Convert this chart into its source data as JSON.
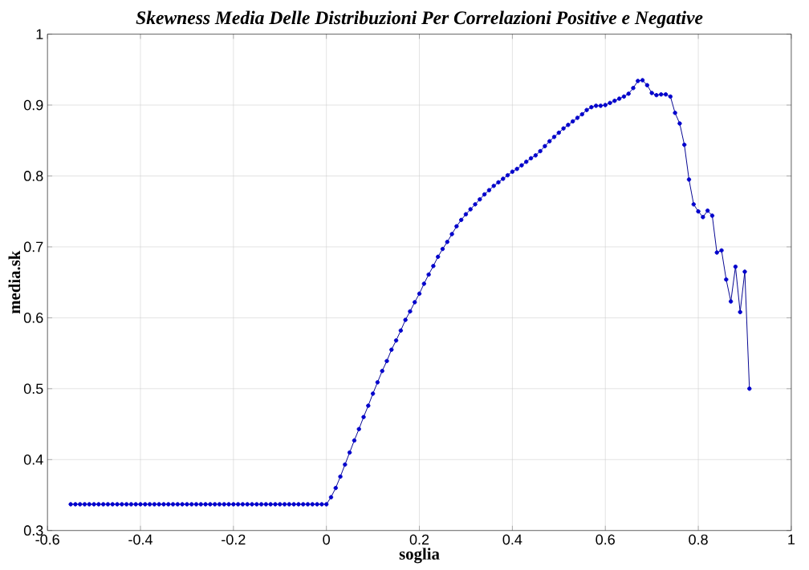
{
  "chart_data": {
    "type": "line",
    "title": "Skewness Media Delle Distribuzioni Per Correlazioni Positive e Negative",
    "xlabel": "soglia",
    "ylabel": "media.sk",
    "x": [
      -0.55,
      -0.54,
      -0.53,
      -0.52,
      -0.51,
      -0.5,
      -0.49,
      -0.48,
      -0.47,
      -0.46,
      -0.45,
      -0.44,
      -0.43,
      -0.42,
      -0.41,
      -0.4,
      -0.39,
      -0.38,
      -0.37,
      -0.36,
      -0.35,
      -0.34,
      -0.33,
      -0.32,
      -0.31,
      -0.3,
      -0.29,
      -0.28,
      -0.27,
      -0.26,
      -0.25,
      -0.24,
      -0.23,
      -0.22,
      -0.21,
      -0.2,
      -0.19,
      -0.18,
      -0.17,
      -0.16,
      -0.15,
      -0.14,
      -0.13,
      -0.12,
      -0.11,
      -0.1,
      -0.09,
      -0.08,
      -0.07,
      -0.06,
      -0.05,
      -0.04,
      -0.03,
      -0.02,
      -0.01,
      0.0,
      0.01,
      0.02,
      0.03,
      0.04,
      0.05,
      0.06,
      0.07,
      0.08,
      0.09,
      0.1,
      0.11,
      0.12,
      0.13,
      0.14,
      0.15,
      0.16,
      0.17,
      0.18,
      0.19,
      0.2,
      0.21,
      0.22,
      0.23,
      0.24,
      0.25,
      0.26,
      0.27,
      0.28,
      0.29,
      0.3,
      0.31,
      0.32,
      0.33,
      0.34,
      0.35,
      0.36,
      0.37,
      0.38,
      0.39,
      0.4,
      0.41,
      0.42,
      0.43,
      0.44,
      0.45,
      0.46,
      0.47,
      0.48,
      0.49,
      0.5,
      0.51,
      0.52,
      0.53,
      0.54,
      0.55,
      0.56,
      0.57,
      0.58,
      0.59,
      0.6,
      0.61,
      0.62,
      0.63,
      0.64,
      0.65,
      0.66,
      0.67,
      0.68,
      0.69,
      0.7,
      0.71,
      0.72,
      0.73,
      0.74,
      0.75,
      0.76,
      0.77,
      0.78,
      0.79,
      0.8,
      0.81,
      0.82,
      0.83,
      0.84,
      0.85,
      0.86,
      0.87,
      0.88,
      0.89,
      0.9,
      0.91
    ],
    "series": [
      {
        "color": "#0000cc",
        "values": [
          0.337,
          0.337,
          0.337,
          0.337,
          0.337,
          0.337,
          0.337,
          0.337,
          0.337,
          0.337,
          0.337,
          0.337,
          0.337,
          0.337,
          0.337,
          0.337,
          0.337,
          0.337,
          0.337,
          0.337,
          0.337,
          0.337,
          0.337,
          0.337,
          0.337,
          0.337,
          0.337,
          0.337,
          0.337,
          0.337,
          0.337,
          0.337,
          0.337,
          0.337,
          0.337,
          0.337,
          0.337,
          0.337,
          0.337,
          0.337,
          0.337,
          0.337,
          0.337,
          0.337,
          0.337,
          0.337,
          0.337,
          0.337,
          0.337,
          0.337,
          0.337,
          0.337,
          0.337,
          0.337,
          0.337,
          0.337,
          0.347,
          0.36,
          0.376,
          0.393,
          0.41,
          0.427,
          0.443,
          0.46,
          0.476,
          0.493,
          0.509,
          0.525,
          0.539,
          0.555,
          0.568,
          0.582,
          0.597,
          0.609,
          0.622,
          0.634,
          0.648,
          0.661,
          0.673,
          0.686,
          0.697,
          0.707,
          0.718,
          0.729,
          0.738,
          0.746,
          0.753,
          0.76,
          0.767,
          0.774,
          0.78,
          0.786,
          0.791,
          0.796,
          0.801,
          0.806,
          0.81,
          0.815,
          0.82,
          0.825,
          0.829,
          0.835,
          0.842,
          0.849,
          0.855,
          0.861,
          0.867,
          0.872,
          0.877,
          0.882,
          0.887,
          0.893,
          0.897,
          0.899,
          0.899,
          0.9,
          0.903,
          0.906,
          0.909,
          0.912,
          0.916,
          0.924,
          0.934,
          0.935,
          0.928,
          0.917,
          0.914,
          0.915,
          0.915,
          0.912,
          0.889,
          0.874,
          0.844,
          0.795,
          0.76,
          0.75,
          0.742,
          0.751,
          0.744,
          0.692,
          0.695,
          0.654,
          0.623,
          0.672,
          0.608,
          0.665,
          0.5
        ]
      }
    ],
    "xlim": [
      -0.6,
      1
    ],
    "ylim": [
      0.3,
      1
    ],
    "xticks": [
      -0.6,
      -0.4,
      -0.2,
      0,
      0.2,
      0.4,
      0.6,
      0.8,
      1
    ],
    "yticks": [
      0.3,
      0.4,
      0.5,
      0.6,
      0.7,
      0.8,
      0.9,
      1
    ],
    "grid": true,
    "marker": "circle",
    "line_style": "solid"
  }
}
